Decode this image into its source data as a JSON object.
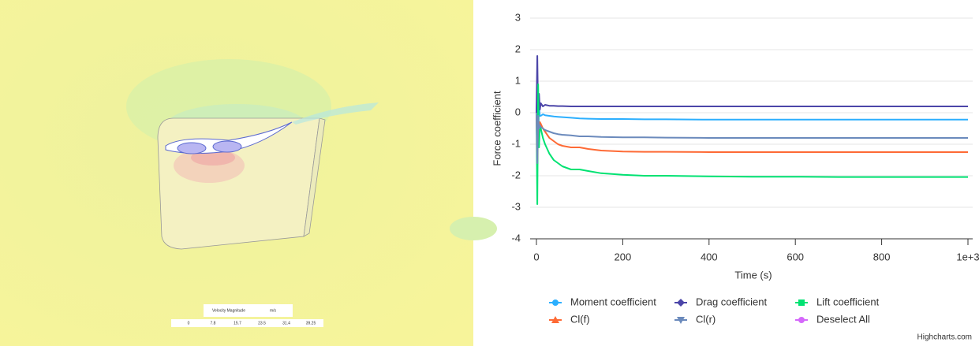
{
  "viewer": {
    "legend_title": "Velocity Magnitude",
    "legend_unit": "m/s",
    "scale_labels": [
      "0",
      "7.8",
      "15.7",
      "23.5",
      "31.4",
      "39.25"
    ]
  },
  "chart_data": {
    "type": "line",
    "y_label": "Force coefficient",
    "x_label": "Time (s)",
    "credits": "Highcharts.com",
    "x": [
      0,
      2,
      4,
      6,
      8,
      10,
      15,
      20,
      30,
      40,
      50,
      60,
      80,
      100,
      120,
      150,
      200,
      250,
      300,
      400,
      500,
      600,
      700,
      800,
      900,
      1000
    ],
    "series": [
      {
        "name": "Moment coefficient",
        "color": "#2caffe",
        "marker": "circle",
        "values": [
          0,
          0.8,
          -0.5,
          0.2,
          -0.1,
          -0.1,
          -0.05,
          -0.08,
          -0.1,
          -0.12,
          -0.13,
          -0.14,
          -0.16,
          -0.18,
          -0.19,
          -0.2,
          -0.2,
          -0.21,
          -0.21,
          -0.22,
          -0.22,
          -0.22,
          -0.22,
          -0.22,
          -0.22,
          -0.22
        ]
      },
      {
        "name": "Drag coefficient",
        "color": "#4b45a8",
        "marker": "diamond",
        "values": [
          0,
          1.8,
          -0.2,
          0.6,
          0.1,
          0.3,
          0.2,
          0.25,
          0.22,
          0.22,
          0.21,
          0.21,
          0.2,
          0.2,
          0.2,
          0.2,
          0.2,
          0.2,
          0.2,
          0.2,
          0.2,
          0.2,
          0.2,
          0.2,
          0.2,
          0.2
        ]
      },
      {
        "name": "Lift coefficient",
        "color": "#00e272",
        "marker": "square",
        "values": [
          0,
          -2.9,
          0.9,
          -1.1,
          -0.3,
          -0.5,
          -0.8,
          -1.0,
          -1.3,
          -1.5,
          -1.6,
          -1.7,
          -1.8,
          -1.8,
          -1.85,
          -1.92,
          -1.97,
          -2.0,
          -2.0,
          -2.02,
          -2.03,
          -2.03,
          -2.04,
          -2.04,
          -2.04,
          -2.04
        ]
      },
      {
        "name": "Cl(f)",
        "color": "#fe6a35",
        "marker": "triangle",
        "values": [
          0,
          -1.5,
          -0.2,
          -0.5,
          -0.3,
          -0.35,
          -0.5,
          -0.6,
          -0.8,
          -0.9,
          -1.0,
          -1.05,
          -1.1,
          -1.1,
          -1.15,
          -1.2,
          -1.23,
          -1.24,
          -1.24,
          -1.25,
          -1.25,
          -1.25,
          -1.25,
          -1.25,
          -1.25,
          -1.25
        ]
      },
      {
        "name": "Cl(r)",
        "color": "#6b8abc",
        "marker": "triangle-down",
        "values": [
          0,
          -1.6,
          -0.1,
          -0.5,
          -0.4,
          -0.45,
          -0.5,
          -0.55,
          -0.6,
          -0.65,
          -0.68,
          -0.7,
          -0.72,
          -0.75,
          -0.75,
          -0.77,
          -0.78,
          -0.78,
          -0.79,
          -0.8,
          -0.8,
          -0.8,
          -0.8,
          -0.8,
          -0.8,
          -0.8
        ]
      }
    ],
    "legend_action": {
      "label": "Deselect All",
      "color": "#d568fb"
    },
    "xlim": [
      0,
      1000
    ],
    "xticks": [
      0,
      200,
      400,
      600,
      800,
      {
        "value": 1000,
        "label": "1e+3"
      }
    ],
    "ylim": [
      -4,
      3
    ],
    "yticks": [
      -4,
      -3,
      -2,
      -1,
      0,
      1,
      2,
      3
    ],
    "grid": true
  }
}
